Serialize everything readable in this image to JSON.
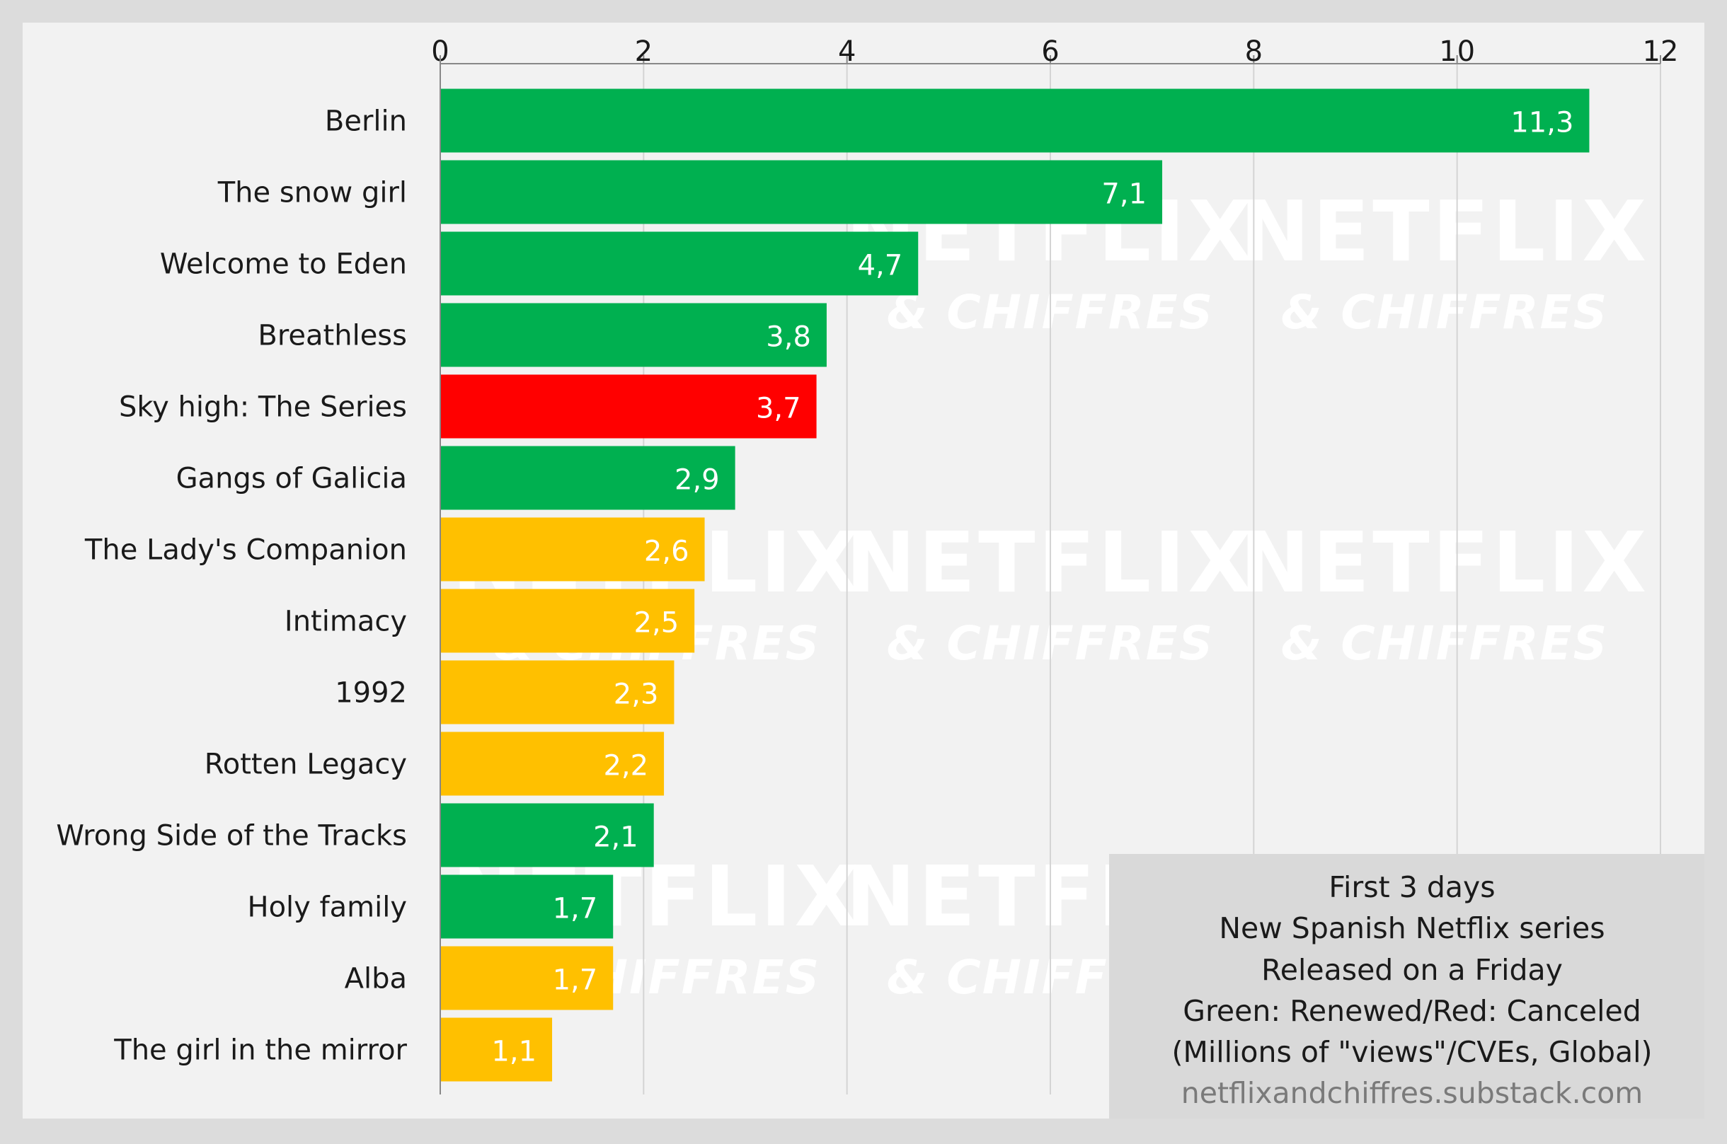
{
  "chart_data": {
    "type": "bar",
    "orientation": "horizontal",
    "categories": [
      "Berlin",
      "The snow girl",
      "Welcome to Eden",
      "Breathless",
      "Sky high: The Series",
      "Gangs of Galicia",
      "The Lady's Companion",
      "Intimacy",
      "1992",
      "Rotten Legacy",
      "Wrong Side of the Tracks",
      "Holy family",
      "Alba",
      "The girl in the mirror"
    ],
    "values": [
      11.3,
      7.1,
      4.7,
      3.8,
      3.7,
      2.9,
      2.6,
      2.5,
      2.3,
      2.2,
      2.1,
      1.7,
      1.7,
      1.1
    ],
    "value_labels": [
      "11,3",
      "7,1",
      "4,7",
      "3,8",
      "3,7",
      "2,9",
      "2,6",
      "2,5",
      "2,3",
      "2,2",
      "2,1",
      "1,7",
      "1,7",
      "1,1"
    ],
    "status": [
      "renewed",
      "renewed",
      "renewed",
      "renewed",
      "canceled",
      "renewed",
      "none",
      "none",
      "none",
      "none",
      "renewed",
      "renewed",
      "none",
      "none"
    ],
    "colors": {
      "renewed": "#00b050",
      "canceled": "#ff0000",
      "none": "#ffc000"
    },
    "xlim": [
      0,
      12
    ],
    "xticks": [
      0,
      2,
      4,
      6,
      8,
      10,
      12
    ],
    "x_axis_position": "top",
    "grid": true,
    "legend_placement": "bottom-right",
    "legend_lines": [
      "First 3 days",
      "New Spanish Netflix series",
      "Released on a Friday",
      "Green: Renewed/Red: Canceled",
      "(Millions of \"views\"/CVEs, Global)"
    ],
    "source": "netflixandchiffres.substack.com"
  },
  "watermark": {
    "line1": "NETFLIX",
    "line2": "& CHIFFRES"
  },
  "style": {
    "plot_background": "#f2f2f2",
    "page_background": "#dcdcdc",
    "legend_background": "#d9d9d9",
    "grid_color": "#d4d4d4",
    "axis_color": "#888888"
  }
}
